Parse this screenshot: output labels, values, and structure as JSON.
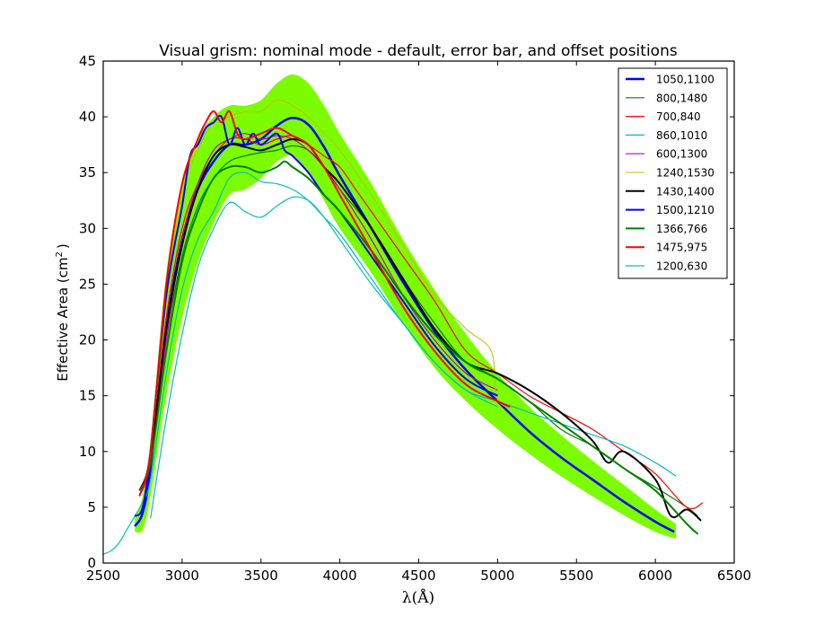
{
  "chart_data": {
    "type": "line",
    "title": "Visual grism: nominal mode - default, error bar, and offset positions",
    "xlabel": "λ(Å)",
    "ylabel": "Effective Area (cm²)",
    "ylabel_parts": {
      "main": "Effective Area (cm",
      "sup": "2",
      "end": ")"
    },
    "xlim": [
      2500,
      6500
    ],
    "ylim": [
      0,
      45
    ],
    "xticks": [
      2500,
      3000,
      3500,
      4000,
      4500,
      5000,
      5500,
      6000,
      6500
    ],
    "yticks": [
      0,
      5,
      10,
      15,
      20,
      25,
      30,
      35,
      40,
      45
    ],
    "grid": false,
    "legend_position": "top-right",
    "error_band": {
      "name": "error bar",
      "color": "#7cfc00",
      "x": [
        2700,
        2750,
        2800,
        2900,
        3000,
        3100,
        3200,
        3300,
        3400,
        3500,
        3600,
        3700,
        3800,
        3900,
        4000,
        4200,
        4400,
        4600,
        4800,
        5000,
        5200,
        5400,
        5600,
        5800,
        6000,
        6130
      ],
      "upper": [
        4.0,
        6.0,
        11.0,
        26.0,
        34.0,
        38.0,
        40.0,
        41.0,
        41.0,
        41.5,
        43.0,
        43.8,
        43.0,
        41.0,
        38.5,
        34.0,
        29.0,
        24.5,
        20.5,
        17.0,
        14.0,
        11.5,
        9.2,
        7.0,
        4.8,
        3.5
      ],
      "lower": [
        2.8,
        3.0,
        6.0,
        15.0,
        22.0,
        27.0,
        30.5,
        33.0,
        33.5,
        34.5,
        36.0,
        36.5,
        35.0,
        32.5,
        30.0,
        26.0,
        21.5,
        17.5,
        14.5,
        12.0,
        9.8,
        7.8,
        6.0,
        4.3,
        2.8,
        2.2
      ]
    },
    "series": [
      {
        "name": "1050,1100",
        "color": "#0000ff",
        "width": 2.5,
        "x": [
          2700,
          2750,
          2800,
          2900,
          3000,
          3100,
          3200,
          3300,
          3400,
          3500,
          3600,
          3700,
          3800,
          3900,
          4000,
          4200,
          4400,
          4600,
          4800,
          5000,
          5200,
          5400,
          5600,
          5800,
          6000,
          6120
        ],
        "y": [
          3.3,
          4.5,
          8.5,
          21.0,
          29.0,
          33.5,
          36.0,
          37.5,
          37.5,
          38.0,
          39.2,
          39.9,
          39.3,
          37.3,
          34.7,
          30.0,
          25.2,
          20.8,
          17.3,
          14.5,
          11.8,
          9.5,
          7.5,
          5.5,
          3.7,
          2.8
        ]
      },
      {
        "name": "800,1480",
        "color": "#008000",
        "width": 1.2,
        "x": [
          2730,
          2800,
          2900,
          3000,
          3100,
          3200,
          3300,
          3400,
          3500,
          3600,
          3700,
          3800,
          3900,
          4000,
          4200,
          4400,
          4600,
          4800,
          5000,
          5200,
          5400,
          5600,
          5800,
          6000,
          6200,
          6270
        ],
        "y": [
          6.5,
          9.0,
          20.0,
          27.5,
          32.0,
          34.5,
          36.0,
          36.5,
          36.8,
          37.0,
          37.4,
          37.0,
          35.5,
          33.5,
          30.0,
          25.5,
          21.5,
          18.0,
          16.5,
          14.5,
          12.0,
          10.5,
          8.5,
          6.8,
          5.0,
          4.2
        ]
      },
      {
        "name": "700,840",
        "color": "#ff0000",
        "width": 1.2,
        "x": [
          2730,
          2800,
          2900,
          3000,
          3100,
          3200,
          3300,
          3400,
          3500,
          3600,
          3700,
          3800,
          3900,
          4000,
          4100,
          4200,
          4400,
          4600,
          4800,
          5000,
          5200,
          5400,
          5600,
          5800,
          6000,
          6200,
          6300
        ],
        "y": [
          6.5,
          9.5,
          22.0,
          30.0,
          34.0,
          36.5,
          38.0,
          38.0,
          37.5,
          38.0,
          38.3,
          37.5,
          36.5,
          35.5,
          33.5,
          31.5,
          27.5,
          23.5,
          19.0,
          17.0,
          15.0,
          13.5,
          12.0,
          10.0,
          8.0,
          5.0,
          5.4
        ]
      },
      {
        "name": "860,1010",
        "color": "#00bfbf",
        "width": 1.2,
        "x": [
          2500,
          2550,
          2600,
          2650,
          2700,
          2750,
          2800,
          2900,
          3000,
          3100,
          3200,
          3300,
          3400,
          3500,
          3600,
          3700,
          3800,
          3900,
          4000,
          4200,
          4400,
          4600,
          4800,
          5000,
          5200,
          5400,
          5600,
          5800,
          6000,
          6130
        ],
        "y": [
          0.8,
          1.1,
          1.8,
          3.0,
          4.2,
          5.5,
          7.5,
          17.0,
          24.5,
          29.0,
          31.5,
          34.5,
          35.0,
          34.2,
          34.0,
          33.5,
          32.5,
          31.0,
          29.5,
          25.5,
          21.5,
          18.0,
          15.5,
          14.5,
          13.5,
          12.5,
          11.5,
          10.5,
          9.0,
          7.8
        ]
      },
      {
        "name": "600,1300",
        "color": "#bf00bf",
        "width": 1.2,
        "x": [
          2730,
          2800,
          2900,
          3000,
          3100,
          3200,
          3300,
          3400,
          3500,
          3600,
          3700,
          3800,
          3900,
          4000,
          4200,
          4400,
          4600,
          4800,
          5000
        ],
        "y": [
          6.0,
          9.0,
          20.0,
          29.0,
          34.0,
          37.0,
          38.0,
          38.5,
          38.0,
          38.3,
          38.0,
          37.0,
          35.5,
          33.5,
          29.0,
          24.0,
          20.0,
          17.0,
          15.5
        ]
      },
      {
        "name": "1240,1530",
        "color": "#bfbf00",
        "width": 1.0,
        "x": [
          2730,
          2800,
          2900,
          3000,
          3100,
          3200,
          3300,
          3400,
          3500,
          3600,
          3700,
          3800,
          3900,
          4000,
          4200,
          4400,
          4600,
          4800,
          4960,
          4990,
          5050
        ],
        "y": [
          6.5,
          10.0,
          24.0,
          33.0,
          37.0,
          39.5,
          40.0,
          40.5,
          40.5,
          41.5,
          41.0,
          40.0,
          38.5,
          37.0,
          33.0,
          28.5,
          24.0,
          21.0,
          19.0,
          15.0,
          14.0
        ]
      },
      {
        "name": "1430,1400",
        "color": "#000000",
        "width": 2.0,
        "x": [
          2730,
          2800,
          2900,
          3000,
          3100,
          3200,
          3300,
          3400,
          3500,
          3600,
          3700,
          3800,
          3900,
          4000,
          4200,
          4400,
          4600,
          4800,
          5000,
          5200,
          5400,
          5600,
          5700,
          5800,
          6000,
          6100,
          6200,
          6290
        ],
        "y": [
          6.5,
          9.5,
          21.0,
          28.5,
          33.5,
          36.5,
          37.5,
          37.3,
          37.0,
          37.5,
          38.0,
          37.5,
          35.5,
          34.0,
          30.0,
          25.5,
          21.0,
          18.0,
          17.0,
          15.5,
          13.5,
          11.0,
          9.0,
          10.0,
          7.5,
          4.2,
          4.8,
          3.8
        ]
      },
      {
        "name": "1500,1210",
        "color": "#0000ff",
        "width": 2.0,
        "x": [
          2700,
          2750,
          2800,
          2900,
          3000,
          3050,
          3100,
          3150,
          3200,
          3250,
          3300,
          3350,
          3400,
          3450,
          3500,
          3600,
          3650,
          3700,
          3800,
          3900,
          4000,
          4200,
          4400,
          4600,
          4800,
          5000
        ],
        "y": [
          4.2,
          5.0,
          10.0,
          24.0,
          32.0,
          36.5,
          37.5,
          39.0,
          39.5,
          40.0,
          37.5,
          39.0,
          37.5,
          38.5,
          37.5,
          38.5,
          37.0,
          36.5,
          35.0,
          33.0,
          31.5,
          27.5,
          23.5,
          19.5,
          16.5,
          15.0
        ]
      },
      {
        "name": "1366,766",
        "color": "#008000",
        "width": 2.0,
        "x": [
          2730,
          2800,
          2900,
          3000,
          3100,
          3200,
          3300,
          3400,
          3500,
          3600,
          3650,
          3700,
          3800,
          3900,
          4000,
          4200,
          4400,
          4600,
          4800,
          5000,
          5200,
          5400,
          5600,
          5800,
          6000,
          6200,
          6270
        ],
        "y": [
          6.5,
          9.0,
          19.0,
          27.0,
          31.5,
          34.5,
          35.5,
          35.5,
          35.0,
          35.5,
          36.0,
          35.5,
          34.5,
          33.0,
          31.5,
          28.0,
          24.0,
          20.5,
          18.0,
          16.5,
          14.5,
          12.5,
          10.5,
          8.5,
          6.5,
          3.5,
          2.6
        ]
      },
      {
        "name": "1475,975",
        "color": "#ff0000",
        "width": 2.0,
        "x": [
          2730,
          2800,
          2900,
          3000,
          3100,
          3150,
          3200,
          3250,
          3300,
          3350,
          3400,
          3500,
          3600,
          3700,
          3800,
          3900,
          4000,
          4200,
          4400,
          4600,
          4800,
          5000,
          5080
        ],
        "y": [
          6.0,
          10.0,
          25.0,
          34.0,
          38.0,
          39.5,
          40.5,
          39.5,
          40.5,
          38.5,
          38.0,
          38.5,
          39.0,
          38.3,
          37.5,
          35.5,
          33.0,
          28.0,
          23.0,
          19.0,
          16.0,
          14.5,
          14.0
        ]
      },
      {
        "name": "1200,630",
        "color": "#00bfbf",
        "width": 1.2,
        "x": [
          2800,
          2900,
          3000,
          3100,
          3200,
          3300,
          3400,
          3500,
          3600,
          3700,
          3800,
          3900,
          4000,
          4200,
          4400,
          4600,
          4800,
          5000
        ],
        "y": [
          4.0,
          13.0,
          20.5,
          26.5,
          30.0,
          32.3,
          31.5,
          31.0,
          32.0,
          32.8,
          32.5,
          31.0,
          29.0,
          25.0,
          21.5,
          18.0,
          15.5,
          14.0
        ]
      }
    ]
  }
}
